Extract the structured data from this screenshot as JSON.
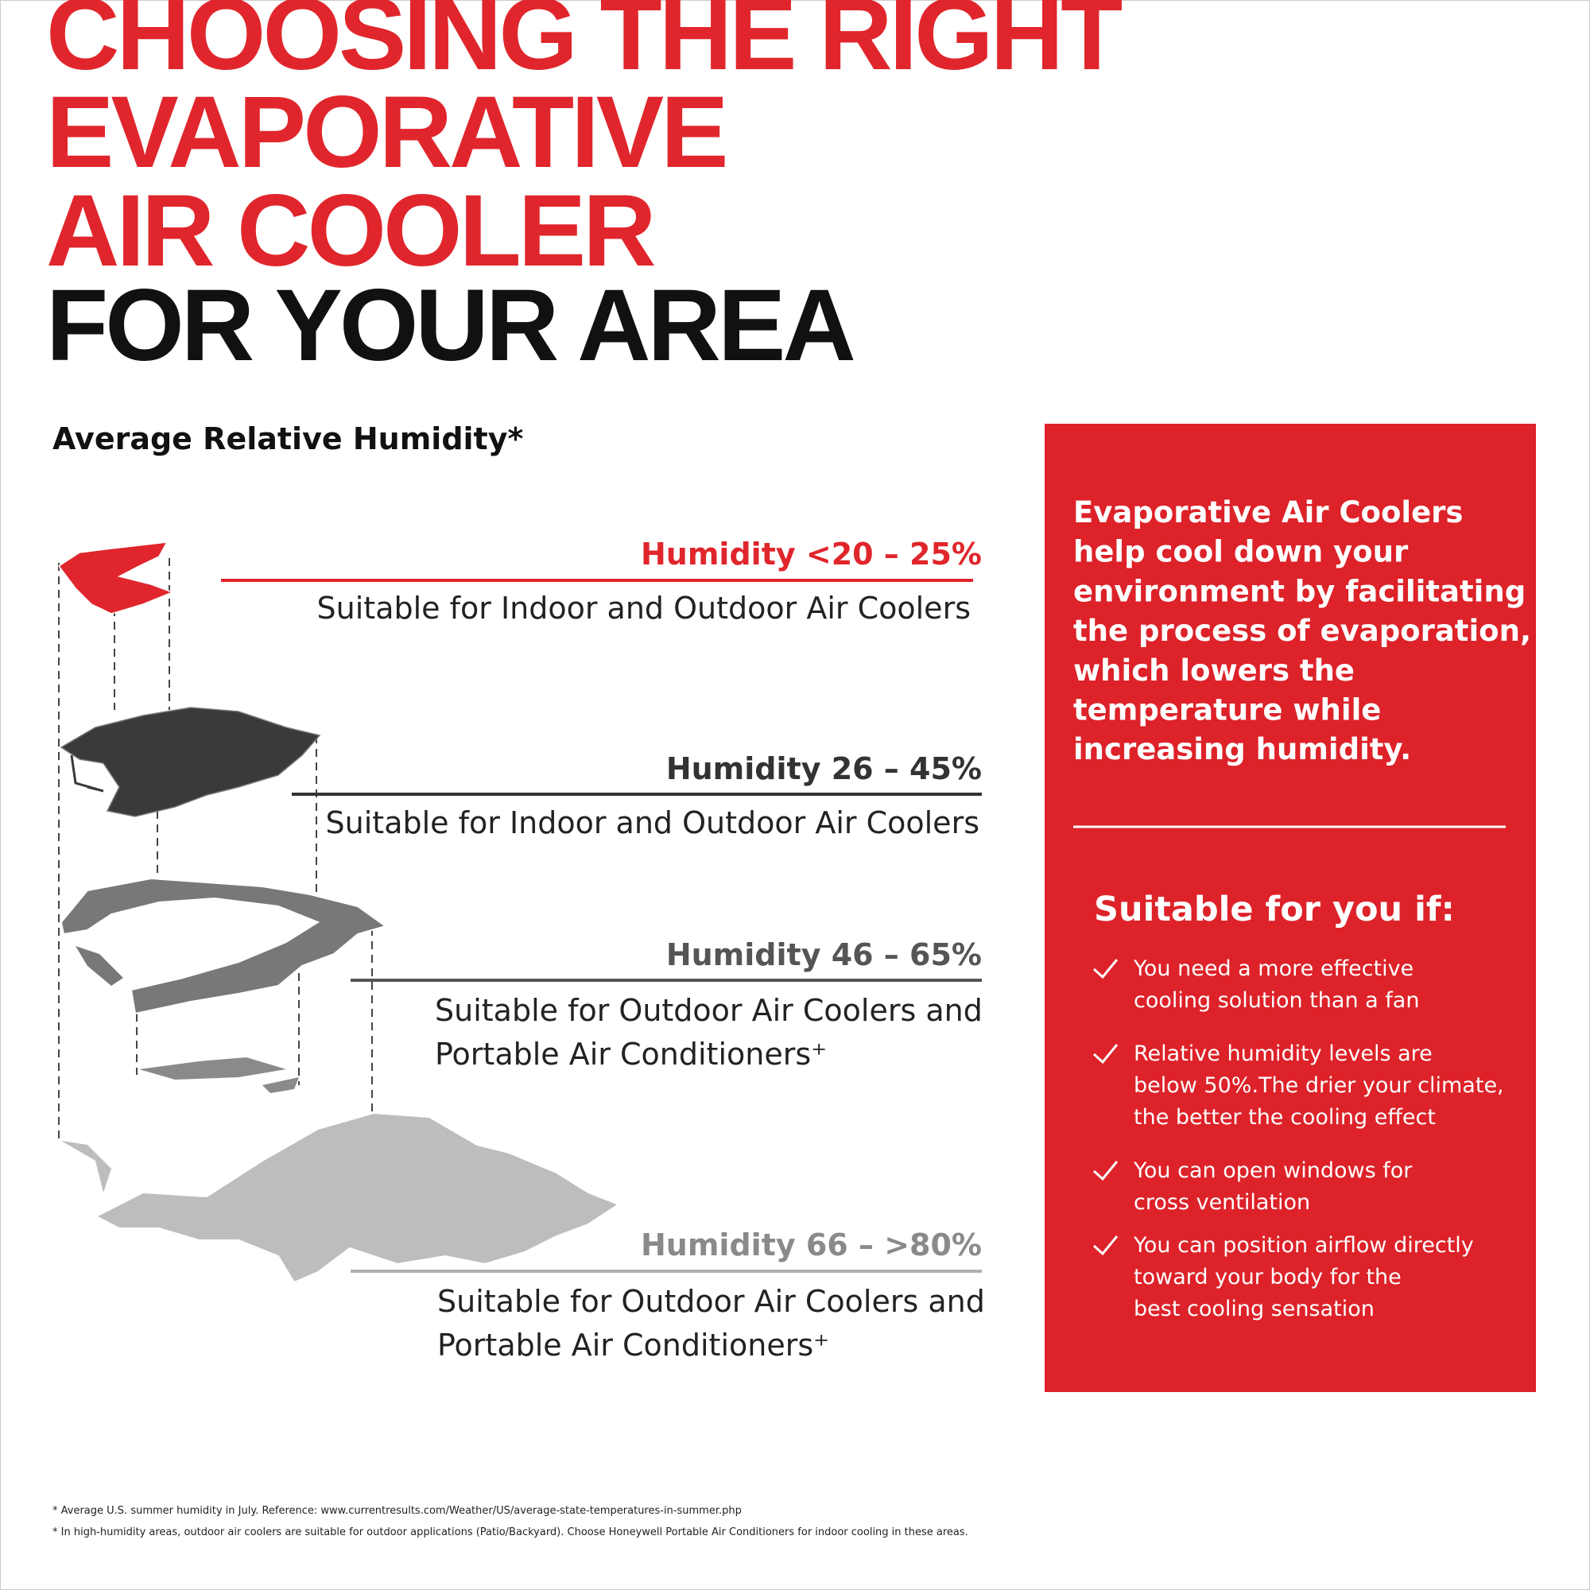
{
  "header": {
    "title_lines": [
      "CHOOSING THE RIGHT",
      "EVAPORATIVE",
      "AIR COOLER"
    ],
    "title_emphasis": "FOR YOUR AREA",
    "subtitle": "Average Relative Humidity*"
  },
  "tiers": [
    {
      "heading": "Humidity <20 – 25%",
      "description": [
        "Suitable for Indoor and Outdoor Air Coolers"
      ]
    },
    {
      "heading": "Humidity  26 – 45%",
      "description": [
        "Suitable for Indoor and Outdoor Air Coolers"
      ]
    },
    {
      "heading": "Humidity  46 – 65%",
      "description": [
        "Suitable for Outdoor Air Coolers and",
        "Portable Air Conditioners⁺"
      ]
    },
    {
      "heading": "Humidity  66 – >80%",
      "description": [
        "Suitable for  Outdoor Air Coolers and",
        "Portable Air Conditioners⁺"
      ]
    }
  ],
  "panel": {
    "intro": [
      "Evaporative Air Coolers",
      "help cool down your",
      "environment by facilitating",
      "the process of evaporation,",
      "which lowers the",
      "temperature while",
      "increasing humidity."
    ],
    "heading": "Suitable for you if:",
    "items": [
      [
        "You need a more effective",
        "cooling solution than a fan"
      ],
      [
        "Relative humidity levels are",
        "below 50%.The drier your climate,",
        "the better the cooling effect"
      ],
      [
        "You can open windows for",
        "cross ventilation"
      ],
      [
        "You can position airflow directly",
        "toward your body for the",
        "best cooling sensation"
      ]
    ]
  },
  "footnotes": [
    "* Average U.S. summer humidity in July. Reference: www.currentresults.com/Weather/US/average-state-temperatures-in-summer.php",
    "* In high-humidity areas, outdoor air coolers are suitable for outdoor applications (Patio/Backyard). Choose Honeywell Portable Air Conditioners for indoor cooling in these areas."
  ]
}
